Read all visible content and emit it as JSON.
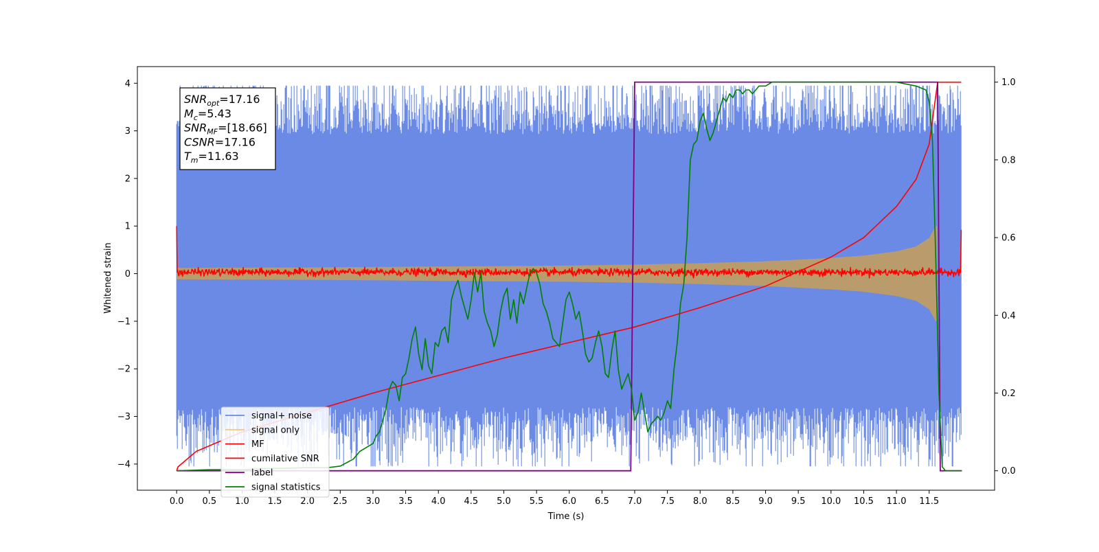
{
  "chart_data": {
    "type": "line",
    "xlabel": "Time (s)",
    "ylabel": "Whitened strain",
    "xlim": [
      -0.6,
      12.5
    ],
    "ylim": [
      -4.55,
      4.35
    ],
    "y2lim": [
      -0.05,
      1.04
    ],
    "x_ticks": [
      0.0,
      0.5,
      1.0,
      1.5,
      2.0,
      2.5,
      3.0,
      3.5,
      4.0,
      4.5,
      5.0,
      5.5,
      6.0,
      6.5,
      7.0,
      7.5,
      8.0,
      8.5,
      9.0,
      9.5,
      10.0,
      10.5,
      11.0,
      11.5
    ],
    "x_tick_labels": [
      "0.0",
      "0.5",
      "1.0",
      "1.5",
      "2.0",
      "2.5",
      "3.0",
      "3.5",
      "4.0",
      "4.5",
      "5.0",
      "5.5",
      "6.0",
      "6.5",
      "7.0",
      "7.5",
      "8.0",
      "8.5",
      "9.0",
      "9.5",
      "10.0",
      "10.5",
      "11.0",
      "11.5"
    ],
    "y_ticks": [
      4,
      3,
      2,
      1,
      0,
      -1,
      -2,
      -3,
      -4
    ],
    "y_tick_labels": [
      "4",
      "3",
      "2",
      "1",
      "0",
      "−1",
      "−2",
      "−3",
      "−4"
    ],
    "y2_ticks": [
      1.0,
      0.8,
      0.6,
      0.4,
      0.2,
      0.0
    ],
    "y2_tick_labels": [
      "1.0",
      "0.8",
      "0.6",
      "0.4",
      "0.2",
      "0.0"
    ],
    "grid": false,
    "legend_position": "lower-left",
    "annotation": [
      {
        "name": "SNR",
        "sub": "opt",
        "value": "=17.16"
      },
      {
        "name": "M",
        "sub": "c",
        "value": "=5.43"
      },
      {
        "name": "SNR",
        "sub": "MF",
        "value": "=[18.66]"
      },
      {
        "name": "CSNR",
        "sub": "",
        "value": "=17.16"
      },
      {
        "name": "T",
        "sub": "m",
        "value": "=11.63"
      }
    ],
    "series": [
      {
        "name": "signal+ noise",
        "color": "#6a8ae6",
        "axis": "left",
        "kind": "noise-band",
        "x_range": [
          0.0,
          11.99
        ],
        "approx_envelope": [
          -2.5,
          2.6
        ],
        "approx_extremes": [
          -4.05,
          3.95
        ]
      },
      {
        "name": "signal only",
        "color": "#f5c87a",
        "axis": "left",
        "kind": "chirp-envelope",
        "x": [
          0.0,
          2.0,
          4.0,
          6.0,
          7.0,
          8.0,
          9.0,
          10.0,
          10.5,
          11.0,
          11.3,
          11.5,
          11.6,
          11.63
        ],
        "amplitude": [
          0.12,
          0.13,
          0.15,
          0.17,
          0.19,
          0.22,
          0.26,
          0.33,
          0.38,
          0.47,
          0.57,
          0.75,
          1.0,
          1.0
        ]
      },
      {
        "name": "MF",
        "color": "#ff0000",
        "axis": "left",
        "kind": "noisy-flat",
        "level": 0.03,
        "jitter": 0.07,
        "edge_values": [
          1.0,
          0.92
        ]
      },
      {
        "name": "cumilative SNR",
        "color": "#ff0000",
        "axis": "right",
        "x": [
          0.0,
          0.02,
          0.3,
          1.0,
          2.0,
          3.0,
          4.0,
          5.0,
          6.0,
          7.0,
          8.0,
          9.0,
          10.0,
          10.5,
          11.0,
          11.3,
          11.5,
          11.63
        ],
        "y": [
          0.0,
          0.01,
          0.05,
          0.1,
          0.15,
          0.2,
          0.245,
          0.29,
          0.33,
          0.37,
          0.42,
          0.475,
          0.55,
          0.6,
          0.68,
          0.75,
          0.84,
          1.0
        ]
      },
      {
        "name": "label",
        "color": "#800080",
        "axis": "right",
        "x": [
          0.0,
          6.94,
          7.0,
          11.63,
          11.67,
          12.0
        ],
        "y": [
          0.0,
          0.0,
          1.0,
          1.0,
          0.0,
          0.0
        ]
      },
      {
        "name": "signal statistics",
        "color": "#008000",
        "axis": "right",
        "x": [
          0.0,
          0.5,
          1.0,
          1.5,
          2.0,
          2.3,
          2.5,
          2.7,
          2.8,
          2.9,
          3.0,
          3.05,
          3.1,
          3.15,
          3.2,
          3.25,
          3.3,
          3.35,
          3.4,
          3.45,
          3.5,
          3.55,
          3.6,
          3.65,
          3.7,
          3.75,
          3.8,
          3.85,
          3.9,
          3.95,
          4.0,
          4.05,
          4.1,
          4.15,
          4.2,
          4.25,
          4.3,
          4.35,
          4.4,
          4.45,
          4.5,
          4.55,
          4.6,
          4.65,
          4.7,
          4.75,
          4.8,
          4.85,
          4.9,
          4.95,
          5.0,
          5.05,
          5.1,
          5.15,
          5.2,
          5.25,
          5.3,
          5.35,
          5.4,
          5.45,
          5.5,
          5.55,
          5.6,
          5.65,
          5.7,
          5.75,
          5.8,
          5.85,
          5.9,
          5.95,
          6.0,
          6.05,
          6.1,
          6.15,
          6.2,
          6.25,
          6.3,
          6.35,
          6.4,
          6.45,
          6.5,
          6.55,
          6.6,
          6.65,
          6.7,
          6.75,
          6.8,
          6.85,
          6.9,
          6.95,
          7.0,
          7.05,
          7.1,
          7.15,
          7.2,
          7.25,
          7.3,
          7.35,
          7.4,
          7.45,
          7.5,
          7.55,
          7.6,
          7.65,
          7.7,
          7.75,
          7.8,
          7.85,
          7.9,
          7.95,
          8.0,
          8.05,
          8.1,
          8.15,
          8.2,
          8.25,
          8.3,
          8.35,
          8.4,
          8.45,
          8.5,
          8.55,
          8.6,
          8.65,
          8.7,
          8.75,
          8.8,
          8.85,
          8.9,
          8.95,
          9.0,
          9.1,
          9.3,
          9.5,
          9.8,
          10.0,
          10.5,
          11.0,
          11.3,
          11.45,
          11.5,
          11.55,
          11.6,
          11.65,
          11.7,
          11.75,
          11.8,
          11.9,
          11.99
        ],
        "y": [
          0.0,
          0.003,
          0.003,
          0.006,
          0.008,
          0.008,
          0.012,
          0.03,
          0.05,
          0.06,
          0.07,
          0.09,
          0.1,
          0.13,
          0.16,
          0.21,
          0.23,
          0.22,
          0.18,
          0.24,
          0.25,
          0.29,
          0.34,
          0.37,
          0.3,
          0.26,
          0.34,
          0.27,
          0.25,
          0.33,
          0.32,
          0.36,
          0.37,
          0.33,
          0.44,
          0.47,
          0.49,
          0.45,
          0.42,
          0.39,
          0.44,
          0.51,
          0.46,
          0.51,
          0.41,
          0.38,
          0.36,
          0.32,
          0.35,
          0.41,
          0.45,
          0.47,
          0.39,
          0.44,
          0.38,
          0.46,
          0.43,
          0.47,
          0.51,
          0.52,
          0.51,
          0.48,
          0.43,
          0.41,
          0.38,
          0.34,
          0.33,
          0.32,
          0.38,
          0.44,
          0.46,
          0.43,
          0.39,
          0.41,
          0.36,
          0.3,
          0.28,
          0.29,
          0.33,
          0.36,
          0.32,
          0.25,
          0.24,
          0.31,
          0.36,
          0.26,
          0.21,
          0.23,
          0.25,
          0.21,
          0.13,
          0.15,
          0.2,
          0.15,
          0.1,
          0.12,
          0.13,
          0.14,
          0.13,
          0.15,
          0.18,
          0.16,
          0.26,
          0.33,
          0.43,
          0.48,
          0.6,
          0.8,
          0.84,
          0.85,
          0.9,
          0.92,
          0.88,
          0.85,
          0.87,
          0.9,
          0.93,
          0.96,
          0.95,
          0.97,
          0.96,
          0.98,
          0.98,
          0.97,
          0.98,
          0.98,
          0.97,
          0.98,
          0.99,
          0.99,
          0.99,
          1.0,
          1.0,
          1.0,
          1.0,
          1.0,
          1.0,
          1.0,
          0.99,
          0.98,
          0.95,
          0.85,
          0.55,
          0.2,
          0.01,
          0.0,
          0.0,
          0.0,
          0.0
        ]
      }
    ]
  }
}
